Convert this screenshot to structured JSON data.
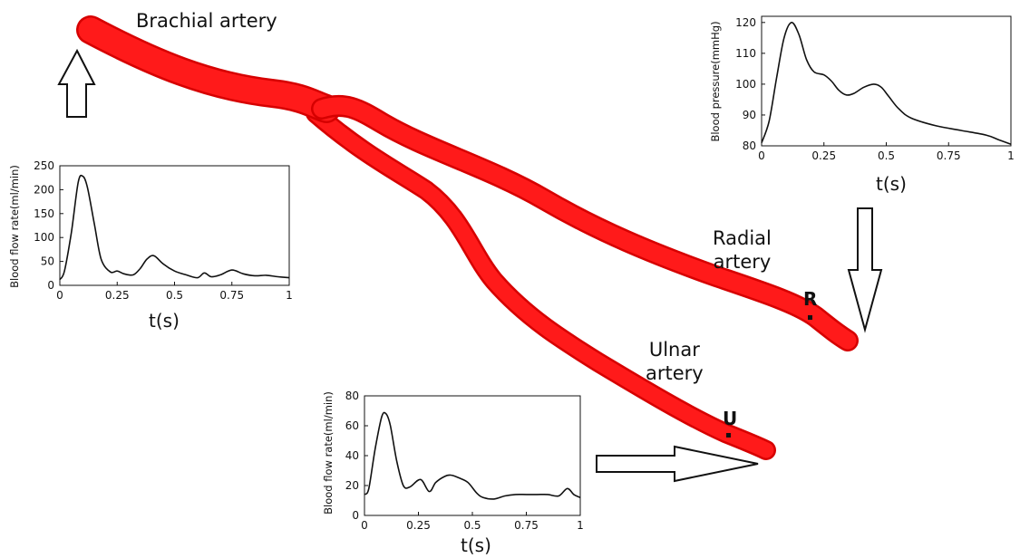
{
  "labels": {
    "brachial": "Brachial artery",
    "radial_line1": "Radial",
    "radial_line2": "artery",
    "ulnar_line1": "Ulnar",
    "ulnar_line2": "artery",
    "marker_r": "R",
    "marker_u": "U"
  },
  "colors": {
    "vessel": "#ff1a1a",
    "vessel_shadow": "#d60000",
    "curve": "#111111"
  },
  "chart_data": [
    {
      "id": "pressure",
      "type": "line",
      "ylabel": "Blood pressure(mmHg)",
      "xlabel": "t(s)",
      "xlim": [
        0,
        1
      ],
      "ylim": [
        80,
        122
      ],
      "xticks": [
        0,
        0.25,
        0.5,
        0.75,
        1
      ],
      "xtick_labels": [
        "0",
        "0.25",
        "0.5",
        "0.75",
        "1"
      ],
      "yticks": [
        80,
        90,
        100,
        110,
        120
      ],
      "ytick_labels": [
        "80",
        "90",
        "100",
        "110",
        "120"
      ],
      "series": [
        {
          "x": [
            0,
            0.03,
            0.06,
            0.09,
            0.12,
            0.15,
            0.18,
            0.21,
            0.25,
            0.28,
            0.31,
            0.34,
            0.37,
            0.41,
            0.45,
            0.48,
            0.51,
            0.55,
            0.6,
            0.7,
            0.8,
            0.9,
            0.95,
            1.0
          ],
          "y": [
            81,
            88,
            102,
            115,
            120,
            116,
            108,
            104,
            103,
            101,
            98,
            96.5,
            97,
            99,
            100,
            99,
            96,
            92,
            89,
            86.5,
            85,
            83.5,
            82,
            80.5
          ]
        }
      ]
    },
    {
      "id": "brachial_flow",
      "type": "line",
      "ylabel": "Blood flow rate(ml/min)",
      "xlabel": "t(s)",
      "xlim": [
        0,
        1
      ],
      "ylim": [
        0,
        250
      ],
      "xticks": [
        0,
        0.25,
        0.5,
        0.75,
        1
      ],
      "xtick_labels": [
        "0",
        "0.25",
        "0.5",
        "0.75",
        "1"
      ],
      "yticks": [
        0,
        50,
        100,
        150,
        200,
        250
      ],
      "ytick_labels": [
        "0",
        "50",
        "100",
        "150",
        "200",
        "250"
      ],
      "series": [
        {
          "x": [
            0,
            0.02,
            0.05,
            0.08,
            0.1,
            0.12,
            0.15,
            0.18,
            0.22,
            0.25,
            0.28,
            0.32,
            0.35,
            0.38,
            0.41,
            0.45,
            0.5,
            0.55,
            0.6,
            0.63,
            0.66,
            0.7,
            0.75,
            0.8,
            0.85,
            0.9,
            0.95,
            1.0
          ],
          "y": [
            12,
            30,
            110,
            215,
            228,
            205,
            130,
            55,
            28,
            30,
            24,
            22,
            35,
            55,
            62,
            45,
            30,
            22,
            16,
            26,
            18,
            22,
            32,
            24,
            20,
            21,
            18,
            16
          ]
        }
      ]
    },
    {
      "id": "ulnar_flow",
      "type": "line",
      "ylabel": "Blood flow rate(ml/min)",
      "xlabel": "t(s)",
      "xlim": [
        0,
        1
      ],
      "ylim": [
        0,
        80
      ],
      "xticks": [
        0,
        0.25,
        0.5,
        0.75,
        1
      ],
      "xtick_labels": [
        "0",
        "0.25",
        "0.5",
        "0.75",
        "1"
      ],
      "yticks": [
        0,
        20,
        40,
        60,
        80
      ],
      "ytick_labels": [
        "0",
        "20",
        "40",
        "60",
        "80"
      ],
      "series": [
        {
          "x": [
            0,
            0.02,
            0.05,
            0.08,
            0.1,
            0.12,
            0.15,
            0.18,
            0.21,
            0.26,
            0.3,
            0.33,
            0.37,
            0.4,
            0.44,
            0.48,
            0.52,
            0.55,
            0.6,
            0.65,
            0.7,
            0.75,
            0.8,
            0.85,
            0.9,
            0.94,
            0.97,
            1.0
          ],
          "y": [
            14,
            18,
            45,
            66,
            68,
            60,
            36,
            20,
            19,
            24,
            16,
            22,
            26,
            27,
            25,
            22,
            15,
            12,
            11,
            13,
            14,
            14,
            14,
            14,
            13,
            18,
            14,
            12
          ]
        }
      ]
    }
  ]
}
